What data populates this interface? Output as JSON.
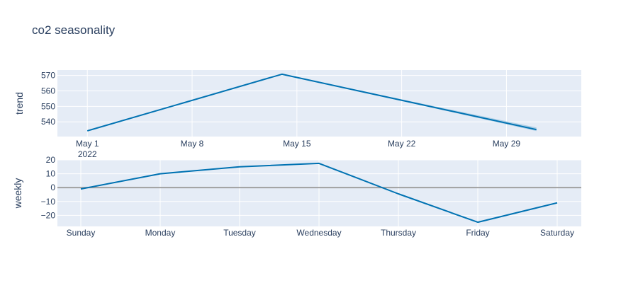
{
  "chart_data": {
    "title": "co2 seasonality",
    "panels": [
      {
        "type": "line",
        "ylabel": "trend",
        "xaxis_type": "date",
        "x": [
          "2022-05-01",
          "2022-05-14",
          "2022-05-31"
        ],
        "values": [
          534.2,
          570.8,
          535.0
        ],
        "band_lower": [
          534.2,
          570.8,
          534.0
        ],
        "band_upper": [
          534.2,
          570.8,
          536.3
        ],
        "xlim": [
          "2022-04-29",
          "2022-06-03"
        ],
        "ylim": [
          530.5,
          573.5
        ],
        "xticks": [
          {
            "x": "2022-05-01",
            "label": "May 1",
            "sublabel": "2022"
          },
          {
            "x": "2022-05-08",
            "label": "May 8",
            "sublabel": ""
          },
          {
            "x": "2022-05-15",
            "label": "May 15",
            "sublabel": ""
          },
          {
            "x": "2022-05-22",
            "label": "May 22",
            "sublabel": ""
          },
          {
            "x": "2022-05-29",
            "label": "May 29",
            "sublabel": ""
          }
        ],
        "yticks": [
          540,
          550,
          560,
          570
        ],
        "grid": true
      },
      {
        "type": "line",
        "ylabel": "weekly",
        "categories": [
          "Sunday",
          "Monday",
          "Tuesday",
          "Wednesday",
          "Thursday",
          "Friday",
          "Saturday"
        ],
        "values": [
          -1,
          10,
          15,
          17.5,
          -4.5,
          -25,
          -11
        ],
        "ylim": [
          -28,
          20
        ],
        "yticks": [
          -20,
          -10,
          0,
          10,
          20
        ],
        "zero_line": true,
        "grid": true
      }
    ],
    "colors": {
      "line": "#0072b2",
      "band": "#0072b2",
      "plot_bg": "#e5ecf6",
      "grid": "#ffffff",
      "zero_line": "#a0a0a0",
      "text": "#2a3f5f"
    }
  }
}
